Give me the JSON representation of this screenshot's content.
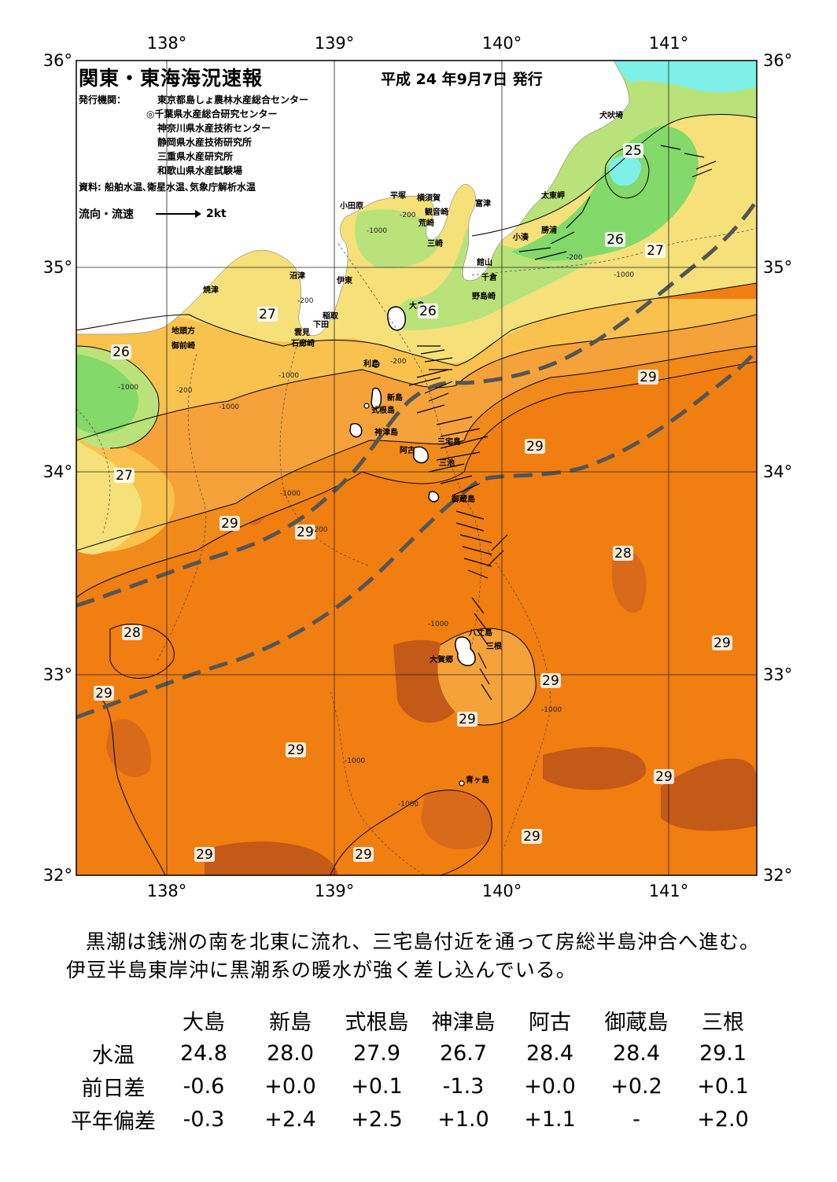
{
  "map": {
    "title": "関東・東海海況速報",
    "issue_date": "平成 24 年9月7日 発行",
    "publishers_label": "発行機関：",
    "publishers": [
      "東京都島しょ農林水産総合センター",
      "◎千葉県水産総合研究センター",
      "神奈川県水産技術センター",
      "静岡県水産技術研究所",
      "三重県水産研究所",
      "和歌山県水産試験場"
    ],
    "source": "資料: 船舶水温､衛星水温､気象庁解析水温",
    "flow_legend_label": "流向・流速",
    "flow_legend_value": "2kt",
    "lon_ticks": [
      "138°",
      "139°",
      "140°",
      "141°"
    ],
    "lat_ticks": [
      "36°",
      "35°",
      "34°",
      "33°",
      "32°"
    ],
    "place_names": [
      "犬吠埼",
      "太東岬",
      "勝浦",
      "小湊",
      "館山",
      "千倉",
      "野島崎",
      "富津",
      "観音崎",
      "横須賀",
      "荒崎",
      "三崎",
      "平塚",
      "小田原",
      "沼津",
      "伊東",
      "稲取",
      "下田",
      "雲見",
      "石廊崎",
      "焼津",
      "地頭方",
      "御前崎",
      "大島",
      "利島",
      "新島",
      "式根島",
      "神津島",
      "三宅島",
      "阿古",
      "三池",
      "御蔵島",
      "八丈島",
      "三根",
      "大賀郷",
      "青ヶ島"
    ],
    "temp_labels": [
      "25",
      "26",
      "27",
      "26",
      "26",
      "27",
      "27",
      "28",
      "29",
      "29",
      "29",
      "29",
      "28",
      "29",
      "29",
      "29",
      "29",
      "29",
      "29",
      "29",
      "29",
      "29"
    ],
    "depth_labels": [
      "-200",
      "-1000",
      "-200",
      "-1000",
      "-200",
      "-1000",
      "-1000",
      "-200",
      "-1000",
      "-200",
      "-1000",
      "-200",
      "-1000",
      "-1000",
      "-1000",
      "-1000"
    ],
    "colors": {
      "t_24_25": "#7ef0e8",
      "t_25_26": "#83d96a",
      "t_26_27": "#b9e37a",
      "t_27_27_5": "#f6e07a",
      "t_27_5_28": "#f9c24e",
      "t_28_28_5": "#f6a23a",
      "t_28_5_29": "#f08a1a",
      "t_29_29_5": "#f07e10",
      "t_29_5_30": "#d86a1a",
      "t_30_plus": "#c45a18",
      "kuroshio_axis": "#555555",
      "land": "#ffffff"
    }
  },
  "summary": "黒潮は銭洲の南を北東に流れ、三宅島付近を通って房総半島沖合へ進む。伊豆半島東岸沖に黒潮系の暖水が強く差し込んでいる。",
  "table": {
    "stations": [
      "大島",
      "新島",
      "式根島",
      "神津島",
      "阿古",
      "御蔵島",
      "三根"
    ],
    "rows": [
      {
        "label": "水温",
        "values": [
          "24.8",
          "28.0",
          "27.9",
          "26.7",
          "28.4",
          "28.4",
          "29.1"
        ]
      },
      {
        "label": "前日差",
        "values": [
          "-0.6",
          "+0.0",
          "+0.1",
          "-1.3",
          "+0.0",
          "+0.2",
          "+0.1"
        ]
      },
      {
        "label": "平年偏差",
        "values": [
          "-0.3",
          "+2.4",
          "+2.5",
          "+1.0",
          "+1.1",
          "-",
          "+2.0"
        ]
      }
    ]
  }
}
